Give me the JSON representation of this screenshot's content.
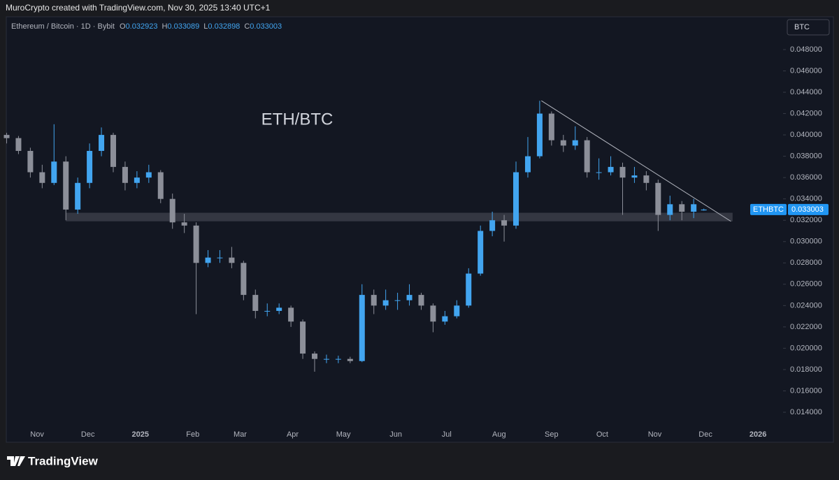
{
  "header": "MuroCrypto created with TradingView.com, Nov 30, 2025 13:40 UTC+1",
  "footer_logo": "TradingView",
  "chart_data": {
    "type": "candlestick",
    "symbol": "Ethereum / Bitcoin · 1D · Bybit",
    "ohlc_labels": [
      "O",
      "H",
      "L",
      "C"
    ],
    "currency": "BTC",
    "symbol_tag": "ETHBTC",
    "annotation": "ETH/BTC",
    "up_color": "#42a5f0",
    "down_color": "#8c8f99",
    "x": [
      -18,
      -11,
      -4,
      3,
      10,
      17,
      24,
      31,
      38,
      45,
      52,
      59,
      66,
      73,
      80,
      87,
      94,
      101,
      108,
      115,
      122,
      129,
      136,
      143,
      150,
      157,
      164,
      171,
      178,
      185,
      192,
      199,
      206,
      213,
      220,
      227,
      234,
      241,
      248,
      255,
      262,
      269,
      276,
      283,
      290,
      297,
      304,
      311,
      318,
      325,
      332,
      339,
      346,
      353,
      360,
      367,
      374,
      381,
      388,
      394
    ],
    "open": [
      0.04,
      0.0397,
      0.0385,
      0.0365,
      0.0355,
      0.0375,
      0.033,
      0.0355,
      0.0385,
      0.04,
      0.037,
      0.0355,
      0.036,
      0.0365,
      0.034,
      0.0318,
      0.0315,
      0.028,
      0.0285,
      0.0285,
      0.028,
      0.025,
      0.0235,
      0.0235,
      0.0238,
      0.0225,
      0.0195,
      0.019,
      0.019,
      0.019,
      0.0188,
      0.025,
      0.024,
      0.0245,
      0.0245,
      0.025,
      0.024,
      0.0225,
      0.023,
      0.024,
      0.027,
      0.031,
      0.032,
      0.0315,
      0.0365,
      0.038,
      0.042,
      0.0395,
      0.039,
      0.0395,
      0.0365,
      0.0365,
      0.037,
      0.036,
      0.0362,
      0.0355,
      0.0325,
      0.0335,
      0.0328,
      0.032923
    ],
    "high": [
      0.0402,
      0.0399,
      0.0388,
      0.0372,
      0.041,
      0.038,
      0.036,
      0.0392,
      0.0407,
      0.0402,
      0.0375,
      0.0366,
      0.0372,
      0.0367,
      0.0345,
      0.0326,
      0.0318,
      0.0292,
      0.0292,
      0.0295,
      0.0282,
      0.0255,
      0.0242,
      0.0242,
      0.024,
      0.0227,
      0.0197,
      0.0194,
      0.0193,
      0.0192,
      0.026,
      0.0255,
      0.0255,
      0.0252,
      0.026,
      0.0252,
      0.0242,
      0.0235,
      0.0245,
      0.0275,
      0.0315,
      0.0328,
      0.0325,
      0.0375,
      0.0398,
      0.0432,
      0.0422,
      0.04,
      0.0408,
      0.0398,
      0.0378,
      0.038,
      0.0374,
      0.037,
      0.0366,
      0.0358,
      0.0343,
      0.0338,
      0.034,
      0.033089
    ],
    "low": [
      0.0392,
      0.0382,
      0.036,
      0.035,
      0.0353,
      0.032,
      0.0326,
      0.035,
      0.038,
      0.0365,
      0.0348,
      0.035,
      0.0355,
      0.0336,
      0.0312,
      0.0308,
      0.0232,
      0.0276,
      0.028,
      0.0275,
      0.0245,
      0.0228,
      0.023,
      0.0232,
      0.022,
      0.019,
      0.0178,
      0.0186,
      0.0186,
      0.0186,
      0.0187,
      0.0232,
      0.0236,
      0.0236,
      0.024,
      0.0236,
      0.0215,
      0.0222,
      0.0228,
      0.0238,
      0.0268,
      0.0305,
      0.03,
      0.0312,
      0.036,
      0.0378,
      0.039,
      0.0384,
      0.0386,
      0.036,
      0.0358,
      0.0362,
      0.0325,
      0.0355,
      0.0348,
      0.031,
      0.032,
      0.032,
      0.0322,
      0.032898
    ],
    "close": [
      0.0397,
      0.0385,
      0.0365,
      0.0355,
      0.0375,
      0.033,
      0.0355,
      0.0385,
      0.04,
      0.037,
      0.0355,
      0.036,
      0.0365,
      0.034,
      0.0318,
      0.0315,
      0.028,
      0.0285,
      0.0285,
      0.028,
      0.025,
      0.0235,
      0.0235,
      0.0238,
      0.0225,
      0.0195,
      0.019,
      0.019,
      0.019,
      0.0188,
      0.025,
      0.024,
      0.0245,
      0.0245,
      0.025,
      0.024,
      0.0225,
      0.023,
      0.024,
      0.027,
      0.031,
      0.032,
      0.0315,
      0.0365,
      0.038,
      0.042,
      0.0395,
      0.039,
      0.0395,
      0.0365,
      0.0365,
      0.037,
      0.036,
      0.0362,
      0.0355,
      0.0325,
      0.0335,
      0.0328,
      0.0335,
      0.033003
    ],
    "trendline": {
      "x": [
        298,
        410
      ],
      "y": [
        0.0432,
        0.0319
      ]
    },
    "zone": {
      "x": [
        17,
        411
      ],
      "y": [
        0.0319,
        0.0327
      ]
    },
    "xlim": [
      -17.8,
      440
    ],
    "ylim": [
      0.01125,
      0.05101
    ],
    "xticks": [
      {
        "value": 0,
        "label": "Nov"
      },
      {
        "value": 30,
        "label": "Dec"
      },
      {
        "value": 61,
        "label": "2025"
      },
      {
        "value": 92,
        "label": "Feb"
      },
      {
        "value": 120,
        "label": "Mar"
      },
      {
        "value": 151,
        "label": "Apr"
      },
      {
        "value": 181,
        "label": "May"
      },
      {
        "value": 212,
        "label": "Jun"
      },
      {
        "value": 242,
        "label": "Jul"
      },
      {
        "value": 273,
        "label": "Aug"
      },
      {
        "value": 304,
        "label": "Sep"
      },
      {
        "value": 334,
        "label": "Oct"
      },
      {
        "value": 365,
        "label": "Nov"
      },
      {
        "value": 395,
        "label": "Dec"
      },
      {
        "value": 426,
        "label": "2026"
      }
    ],
    "yticks": [
      {
        "value": 0.014,
        "label": "0.014000"
      },
      {
        "value": 0.016,
        "label": "0.016000"
      },
      {
        "value": 0.018,
        "label": "0.018000"
      },
      {
        "value": 0.02,
        "label": "0.020000"
      },
      {
        "value": 0.022,
        "label": "0.022000"
      },
      {
        "value": 0.024,
        "label": "0.024000"
      },
      {
        "value": 0.026,
        "label": "0.026000"
      },
      {
        "value": 0.028,
        "label": "0.028000"
      },
      {
        "value": 0.03,
        "label": "0.030000"
      },
      {
        "value": 0.032,
        "label": "0.032000"
      },
      {
        "value": 0.034,
        "label": "0.034000"
      },
      {
        "value": 0.036,
        "label": "0.036000"
      },
      {
        "value": 0.038,
        "label": "0.038000"
      },
      {
        "value": 0.04,
        "label": "0.040000"
      },
      {
        "value": 0.042,
        "label": "0.042000"
      },
      {
        "value": 0.044,
        "label": "0.044000"
      },
      {
        "value": 0.046,
        "label": "0.046000"
      },
      {
        "value": 0.048,
        "label": "0.048000"
      }
    ]
  }
}
